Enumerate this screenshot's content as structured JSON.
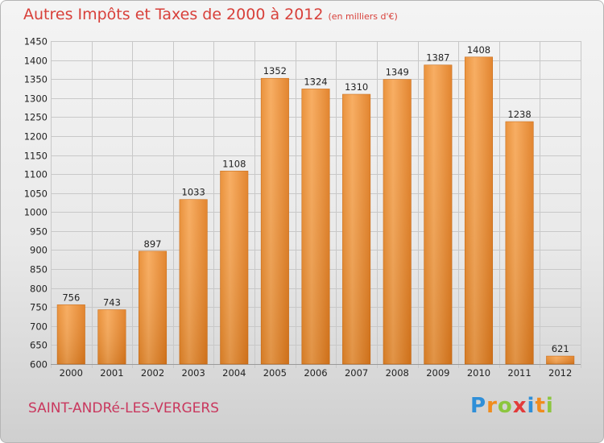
{
  "title": "Autres Impôts et Taxes de 2000 à 2012",
  "subtitle": "(en milliers d'€)",
  "place": "SAINT-ANDRé-LES-VERGERS",
  "logo": {
    "text": "Proxiti",
    "letters": [
      {
        "ch": "P",
        "color": "#2f8fd8"
      },
      {
        "ch": "r",
        "color": "#f08c1e"
      },
      {
        "ch": "o",
        "color": "#8cc63f"
      },
      {
        "ch": "x",
        "color": "#e23a3a"
      },
      {
        "ch": "i",
        "color": "#2f8fd8"
      },
      {
        "ch": "t",
        "color": "#f08c1e"
      },
      {
        "ch": "i",
        "color": "#8cc63f"
      }
    ]
  },
  "colors": {
    "title": "#d8403a",
    "place": "#c9385e",
    "bar_light": "#f7a756",
    "bar_dark": "#e07b1e",
    "grid": "#c8c8c8",
    "axis_text": "#222222"
  },
  "chart_data": {
    "type": "bar",
    "title": "Autres Impôts et Taxes de 2000 à 2012",
    "subtitle": "(en milliers d'€)",
    "categories": [
      "2000",
      "2001",
      "2002",
      "2003",
      "2004",
      "2005",
      "2006",
      "2007",
      "2008",
      "2009",
      "2010",
      "2011",
      "2012"
    ],
    "values": [
      756,
      743,
      897,
      1033,
      1108,
      1352,
      1324,
      1310,
      1349,
      1387,
      1408,
      1238,
      621
    ],
    "ylim": [
      600,
      1450
    ],
    "ytick_step": 50,
    "yticks": [
      600,
      650,
      700,
      750,
      800,
      850,
      900,
      950,
      1000,
      1050,
      1100,
      1150,
      1200,
      1250,
      1300,
      1350,
      1400,
      1450
    ],
    "grid": true,
    "data_labels": true,
    "legend": "none"
  }
}
